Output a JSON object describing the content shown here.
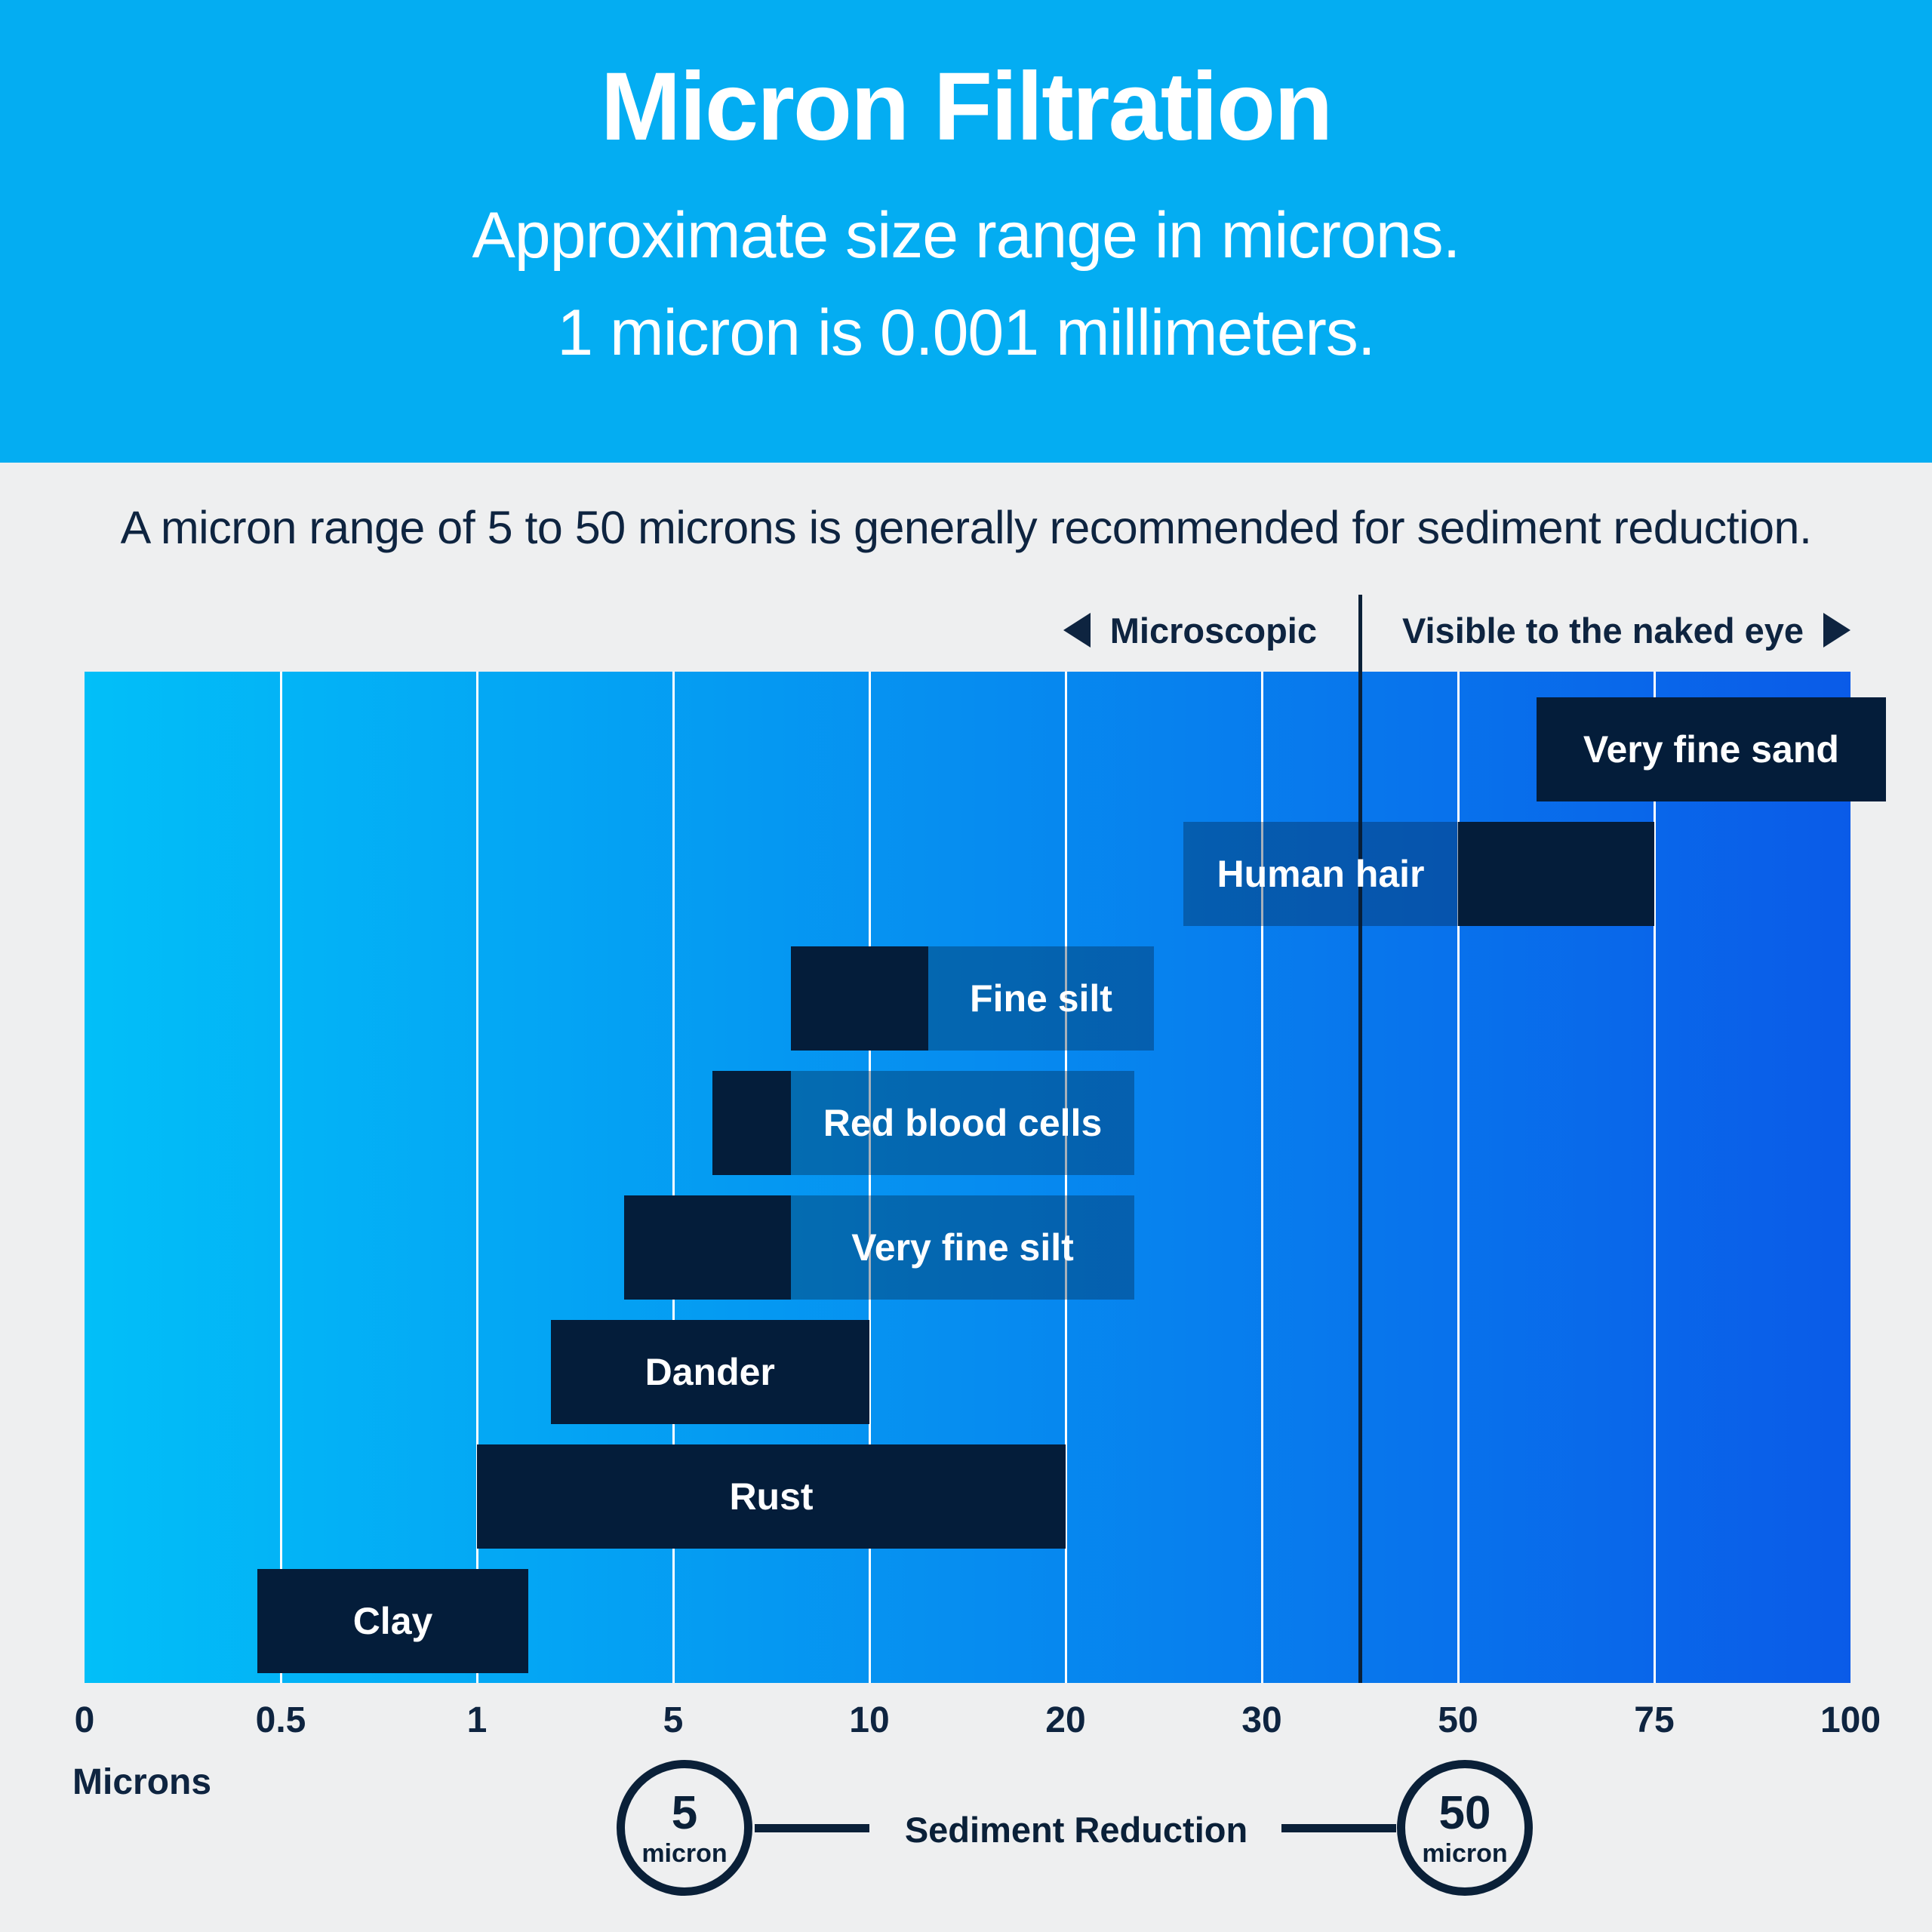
{
  "header": {
    "title": "Micron Filtration",
    "subtitle_line1": "Approximate size range in microns.",
    "subtitle_line2": "1 micron is 0.001 millimeters.",
    "background_color": "#04ADF2"
  },
  "intro": {
    "text": "A micron range of 5 to 50 microns is generally recommended for sediment reduction."
  },
  "zones": {
    "left_label": "Microscopic",
    "right_label": "Visible to the naked eye",
    "divider_micron": 40
  },
  "axis": {
    "tick_labels": [
      "0",
      "0.5",
      "1",
      "5",
      "10",
      "20",
      "30",
      "50",
      "75",
      "100"
    ],
    "unit_label": "Microns"
  },
  "chart_data": {
    "type": "bar",
    "orientation": "horizontal-range",
    "unit": "microns",
    "scale": "piecewise-linear",
    "x_ticks": [
      0,
      0.5,
      1,
      5,
      10,
      20,
      30,
      50,
      75,
      100
    ],
    "xlabel": "Microns",
    "grid": "vertical-white-lines",
    "items": [
      {
        "label": "Very fine sand",
        "range_microns": [
          60,
          100
        ],
        "bar_display": [
          60,
          104.5
        ],
        "label_zone": null,
        "label_placement": "inside-bar"
      },
      {
        "label": "Human hair",
        "range_microns": [
          50,
          75
        ],
        "bar_display": [
          50,
          75
        ],
        "label_zone": [
          26,
          50
        ],
        "label_placement": "zone-left-of-bar"
      },
      {
        "label": "Fine silt",
        "range_microns": [
          8,
          13
        ],
        "bar_display": [
          8,
          13
        ],
        "label_zone": [
          13,
          24.5
        ],
        "label_placement": "zone-right-of-bar"
      },
      {
        "label": "Red blood cells",
        "range_microns": [
          6,
          8
        ],
        "bar_display": [
          6,
          8
        ],
        "label_zone": [
          8,
          23.5
        ],
        "label_placement": "zone-right-of-bar"
      },
      {
        "label": "Very fine silt",
        "range_microns": [
          4,
          8
        ],
        "bar_display": [
          4,
          8
        ],
        "label_zone": [
          8,
          23.5
        ],
        "label_placement": "zone-right-of-bar"
      },
      {
        "label": "Dander",
        "range_microns": [
          2.5,
          10
        ],
        "bar_display": [
          2.5,
          10
        ],
        "label_zone": null,
        "label_placement": "inside-bar"
      },
      {
        "label": "Rust",
        "range_microns": [
          1,
          20
        ],
        "bar_display": [
          1,
          20
        ],
        "label_zone": null,
        "label_placement": "inside-bar"
      },
      {
        "label": "Clay",
        "range_microns": [
          0.4,
          2
        ],
        "bar_display": [
          0.44,
          2.05
        ],
        "label_zone": null,
        "label_placement": "inside-bar"
      }
    ],
    "divider": {
      "micron": 40,
      "left_label": "Microscopic",
      "right_label": "Visible to the naked eye"
    },
    "legend_position": "bottom",
    "colors": {
      "bar": "#041D3A",
      "label_zone": "rgba(4,29,58,0.35)",
      "gradient_left": "#02BFF8",
      "gradient_right": "#0A5BE8",
      "gridline": "#FFFFFF",
      "divider_line": "#0A2038",
      "text_navy": "#0E2440",
      "page_background": "#EEEFF0",
      "header_background": "#04ADF2"
    }
  },
  "legend": {
    "left_circle": {
      "value": "5",
      "unit": "micron"
    },
    "right_circle": {
      "value": "50",
      "unit": "micron"
    },
    "center_label": "Sediment Reduction"
  }
}
